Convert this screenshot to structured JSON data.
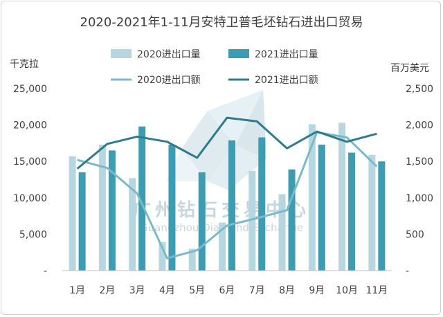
{
  "chart_data": {
    "type": "bar+line",
    "title": "2020-2021年1-11月安特卫普毛坯钻石进出口贸易",
    "categories": [
      "1月",
      "2月",
      "3月",
      "4月",
      "5月",
      "6月",
      "7月",
      "8月",
      "9月",
      "10月",
      "11月"
    ],
    "left_axis": {
      "label": "千克拉",
      "ylim": [
        0,
        25000
      ],
      "ticks": [
        "-",
        "5,000",
        "10,000",
        "15,000",
        "20,000",
        "25,000"
      ]
    },
    "right_axis": {
      "label": "百万美元",
      "ylim": [
        0,
        2500
      ],
      "ticks": [
        "-",
        "500",
        "1,000",
        "1,500",
        "2,000",
        "2,500"
      ]
    },
    "series": [
      {
        "name": "2020进出口量",
        "kind": "bar",
        "axis": "left",
        "color": "#b7d7e0",
        "values": [
          15700,
          17300,
          12700,
          3900,
          3000,
          6600,
          13700,
          10500,
          20100,
          20300,
          15900
        ]
      },
      {
        "name": "2021进出口量",
        "kind": "bar",
        "axis": "left",
        "color": "#3c9db2",
        "values": [
          13500,
          16500,
          19800,
          17300,
          13500,
          17900,
          18300,
          13900,
          17300,
          16200,
          15000
        ]
      },
      {
        "name": "2020进出口额",
        "kind": "line",
        "axis": "right",
        "color": "#7ab9cb",
        "values": [
          1520,
          1410,
          1060,
          170,
          280,
          620,
          720,
          830,
          1900,
          1830,
          1430
        ]
      },
      {
        "name": "2021进出口额",
        "kind": "line",
        "axis": "right",
        "color": "#2e7a8e",
        "values": [
          1400,
          1740,
          1840,
          1770,
          1550,
          2100,
          2050,
          1680,
          1910,
          1770,
          1880
        ]
      }
    ],
    "grid": false,
    "legend_position": "top"
  },
  "watermark": {
    "cn": "广州钻石交易中心",
    "en": "Guangzhou Diamond Exchange"
  }
}
